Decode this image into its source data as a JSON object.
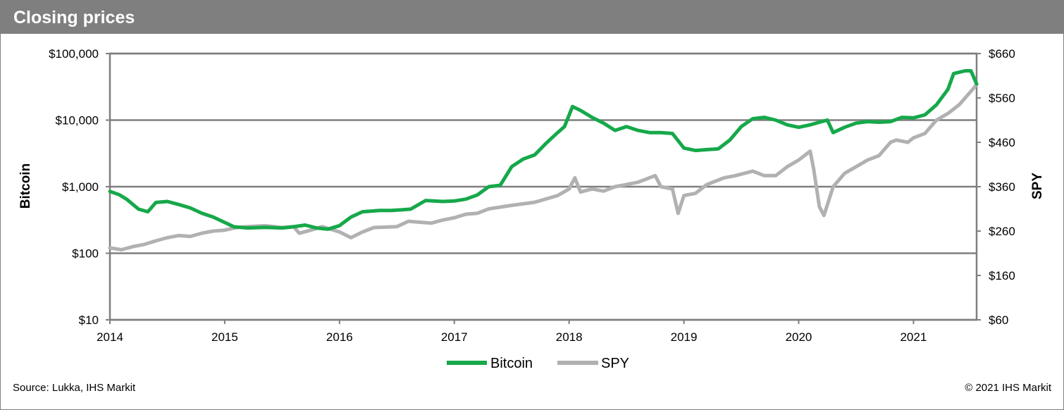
{
  "header": {
    "title": "Closing prices"
  },
  "footer": {
    "source": "Source: Lukka, IHS Markit",
    "copyright": "© 2021 IHS Markit"
  },
  "colors": {
    "bitcoin": "#16a84a",
    "spy": "#b1b1b3",
    "header_bg": "#7f7f7f",
    "grid": "#7f7f7f"
  },
  "chart_data": {
    "type": "line",
    "title": "Closing prices",
    "x_ticks": [
      "2014",
      "2015",
      "2016",
      "2017",
      "2018",
      "2019",
      "2020",
      "2021"
    ],
    "xlim": [
      2014,
      2021.55
    ],
    "y_left": {
      "label": "Bitcoin",
      "scale": "log",
      "ylim": [
        10,
        100000
      ],
      "ticks": [
        10,
        100,
        1000,
        10000,
        100000
      ],
      "tick_labels": [
        "$10",
        "$100",
        "$1,000",
        "$10,000",
        "$100,000"
      ]
    },
    "y_right": {
      "label": "SPY",
      "scale": "linear",
      "ylim": [
        60,
        660
      ],
      "ticks": [
        60,
        160,
        260,
        360,
        460,
        560,
        660
      ],
      "tick_labels": [
        "$60",
        "$160",
        "$260",
        "$360",
        "$460",
        "$560",
        "$660"
      ]
    },
    "grid": true,
    "legend_position": "bottom",
    "series": [
      {
        "name": "Bitcoin",
        "axis": "left",
        "x": [
          2014.0,
          2014.08,
          2014.15,
          2014.25,
          2014.33,
          2014.4,
          2014.5,
          2014.6,
          2014.7,
          2014.8,
          2014.9,
          2015.0,
          2015.08,
          2015.2,
          2015.35,
          2015.5,
          2015.6,
          2015.7,
          2015.8,
          2015.9,
          2016.0,
          2016.1,
          2016.2,
          2016.35,
          2016.45,
          2016.55,
          2016.62,
          2016.75,
          2016.9,
          2017.0,
          2017.1,
          2017.2,
          2017.3,
          2017.4,
          2017.5,
          2017.6,
          2017.7,
          2017.8,
          2017.9,
          2017.96,
          2018.03,
          2018.1,
          2018.2,
          2018.3,
          2018.4,
          2018.5,
          2018.6,
          2018.7,
          2018.8,
          2018.9,
          2019.0,
          2019.1,
          2019.2,
          2019.3,
          2019.4,
          2019.5,
          2019.6,
          2019.7,
          2019.8,
          2019.9,
          2020.0,
          2020.1,
          2020.2,
          2020.25,
          2020.3,
          2020.4,
          2020.5,
          2020.6,
          2020.7,
          2020.8,
          2020.9,
          2021.0,
          2021.1,
          2021.2,
          2021.3,
          2021.35,
          2021.45,
          2021.5,
          2021.55
        ],
        "values": [
          850,
          760,
          640,
          460,
          420,
          580,
          600,
          540,
          480,
          400,
          350,
          290,
          250,
          240,
          245,
          240,
          250,
          265,
          240,
          230,
          260,
          350,
          420,
          440,
          440,
          450,
          460,
          620,
          600,
          610,
          650,
          750,
          1000,
          1050,
          2000,
          2600,
          3000,
          4500,
          6500,
          8000,
          16000,
          14000,
          11000,
          9000,
          7000,
          8000,
          7000,
          6500,
          6500,
          6300,
          3800,
          3500,
          3600,
          3700,
          5000,
          8000,
          10500,
          11000,
          10000,
          8500,
          7800,
          8500,
          9500,
          10000,
          6500,
          7800,
          9000,
          9500,
          9300,
          9500,
          11000,
          10800,
          12000,
          17000,
          29000,
          50000,
          55000,
          55000,
          35000
        ]
      },
      {
        "name": "SPY",
        "axis": "right",
        "x": [
          2014.0,
          2014.1,
          2014.2,
          2014.3,
          2014.4,
          2014.5,
          2014.6,
          2014.7,
          2014.8,
          2014.9,
          2015.0,
          2015.1,
          2015.2,
          2015.35,
          2015.5,
          2015.6,
          2015.65,
          2015.75,
          2015.85,
          2016.0,
          2016.1,
          2016.2,
          2016.3,
          2016.5,
          2016.6,
          2016.8,
          2016.9,
          2017.0,
          2017.1,
          2017.2,
          2017.3,
          2017.5,
          2017.7,
          2017.9,
          2018.0,
          2018.05,
          2018.1,
          2018.2,
          2018.3,
          2018.4,
          2018.5,
          2018.6,
          2018.75,
          2018.8,
          2018.9,
          2018.95,
          2019.0,
          2019.1,
          2019.2,
          2019.35,
          2019.45,
          2019.6,
          2019.7,
          2019.8,
          2019.9,
          2020.0,
          2020.1,
          2020.13,
          2020.18,
          2020.22,
          2020.3,
          2020.4,
          2020.5,
          2020.6,
          2020.7,
          2020.8,
          2020.85,
          2020.95,
          2021.0,
          2021.1,
          2021.2,
          2021.3,
          2021.4,
          2021.5,
          2021.55
        ],
        "values": [
          222,
          218,
          225,
          230,
          238,
          245,
          250,
          248,
          255,
          260,
          262,
          268,
          270,
          272,
          268,
          270,
          255,
          262,
          270,
          258,
          245,
          258,
          268,
          270,
          282,
          278,
          285,
          290,
          298,
          300,
          310,
          318,
          325,
          340,
          355,
          380,
          348,
          355,
          350,
          360,
          365,
          370,
          385,
          360,
          355,
          300,
          340,
          345,
          365,
          380,
          385,
          395,
          385,
          385,
          405,
          420,
          440,
          400,
          315,
          295,
          360,
          390,
          405,
          420,
          430,
          460,
          465,
          460,
          470,
          480,
          510,
          525,
          545,
          575,
          590
        ]
      }
    ]
  }
}
